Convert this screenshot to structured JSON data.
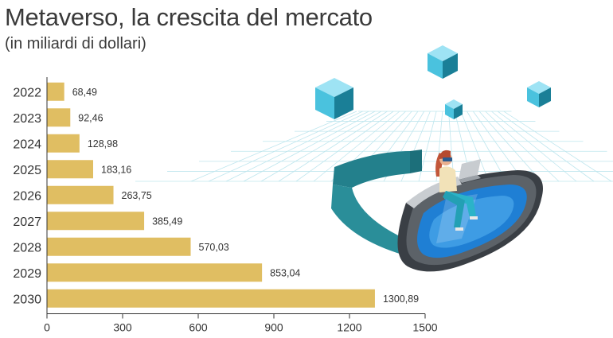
{
  "title": "Metaverso, la crescita del mercato",
  "subtitle": "(in miliardi di dollari)",
  "colors": {
    "bar": "#E0BE62",
    "axis": "#333333",
    "cube_light": "#7fd6ee",
    "cube_dark": "#1a7f97",
    "headset_teal": "#2a8e99",
    "lens_blue": "#1f7fd4"
  },
  "chart_data": {
    "type": "bar",
    "orientation": "horizontal",
    "categories": [
      "2022",
      "2023",
      "2024",
      "2025",
      "2026",
      "2027",
      "2028",
      "2029",
      "2030"
    ],
    "values": [
      68.49,
      92.46,
      128.98,
      183.16,
      263.75,
      385.49,
      570.03,
      853.04,
      1300.89
    ],
    "value_labels": [
      "68,49",
      "92,46",
      "128,98",
      "183,16",
      "263,75",
      "385,49",
      "570,03",
      "853,04",
      "1300,89"
    ],
    "xlim": [
      0,
      1500
    ],
    "xticks": [
      0,
      300,
      600,
      900,
      1200,
      1500
    ],
    "xtick_labels": [
      "0",
      "300",
      "600",
      "900",
      "1200",
      "1500"
    ],
    "grid": false
  }
}
